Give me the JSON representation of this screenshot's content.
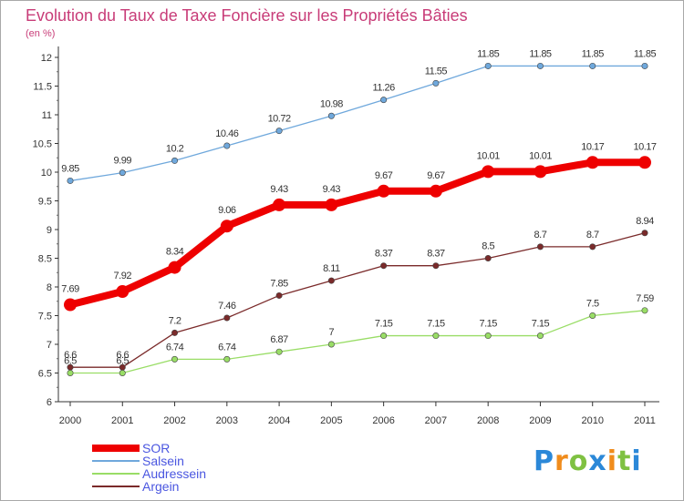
{
  "title": "Evolution du Taux de Taxe Foncière sur les Propriétés Bâties",
  "subtitle": "(en %)",
  "logo": {
    "letters": [
      "P",
      "r",
      "o",
      "x",
      "i",
      "t",
      "i"
    ],
    "colors": [
      "#2b88d8",
      "#f08c1c",
      "#7fc142",
      "#2b88d8",
      "#f08c1c",
      "#7fc142",
      "#2b88d8"
    ]
  },
  "chart_data": {
    "type": "line",
    "title": "Evolution du Taux de Taxe Foncière sur les Propriétés Bâties",
    "ylabel": "(en %)",
    "xlabel": "",
    "x": [
      "2000",
      "2001",
      "2002",
      "2003",
      "2004",
      "2005",
      "2006",
      "2007",
      "2008",
      "2009",
      "2010",
      "2011"
    ],
    "ylim": [
      6,
      12
    ],
    "yticks": [
      "6",
      "6.5",
      "7",
      "7.5",
      "8",
      "8.5",
      "9",
      "9.5",
      "10",
      "10.5",
      "11",
      "11.5",
      "12"
    ],
    "legend_position": "bottom-left",
    "series": [
      {
        "name": "SOR",
        "color": "#ee0000",
        "values": [
          7.69,
          7.92,
          8.34,
          9.06,
          9.43,
          9.43,
          9.67,
          9.67,
          10.01,
          10.01,
          10.17,
          10.17
        ],
        "labels": [
          "7.69",
          "7.92",
          "8.34",
          "9.06",
          "9.43",
          "9.43",
          "9.67",
          "9.67",
          "10.01",
          "10.01",
          "10.17",
          "10.17"
        ]
      },
      {
        "name": "Salsein",
        "color": "#6fa8dc",
        "values": [
          9.85,
          9.99,
          10.2,
          10.46,
          10.72,
          10.98,
          11.26,
          11.55,
          11.85,
          11.85,
          11.85,
          11.85
        ],
        "labels": [
          "9.85",
          "9.99",
          "10.2",
          "10.46",
          "10.72",
          "10.98",
          "11.26",
          "11.55",
          "11.85",
          "11.85",
          "11.85",
          "11.85"
        ]
      },
      {
        "name": "Audressein",
        "color": "#99dd66",
        "values": [
          6.5,
          6.5,
          6.74,
          6.74,
          6.87,
          7,
          7.15,
          7.15,
          7.15,
          7.15,
          7.5,
          7.59
        ],
        "labels": [
          "6.5",
          "6.5",
          "6.74",
          "6.74",
          "6.87",
          "7",
          "7.15",
          "7.15",
          "7.15",
          "7.15",
          "7.5",
          "7.59"
        ]
      },
      {
        "name": "Argein",
        "color": "#7a2a2a",
        "values": [
          6.6,
          6.6,
          7.2,
          7.46,
          7.85,
          8.11,
          8.37,
          8.37,
          8.5,
          8.7,
          8.7,
          8.94
        ],
        "labels": [
          "6.6",
          "6.6",
          "7.2",
          "7.46",
          "7.85",
          "8.11",
          "8.37",
          "8.37",
          "8.5",
          "8.7",
          "8.7",
          "8.94"
        ]
      }
    ]
  }
}
